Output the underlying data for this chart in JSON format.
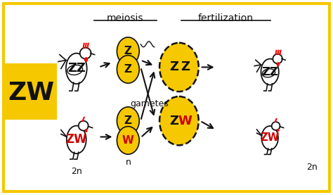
{
  "yellow": "#f5c800",
  "red": "#cc0000",
  "black": "#111111",
  "white": "#ffffff",
  "title_meiosis": "meiosis",
  "title_fertilization": "fertilization",
  "label_gametes": "gametes",
  "label_2n_left": "2n",
  "label_n": "n",
  "label_2n_right": "2n"
}
